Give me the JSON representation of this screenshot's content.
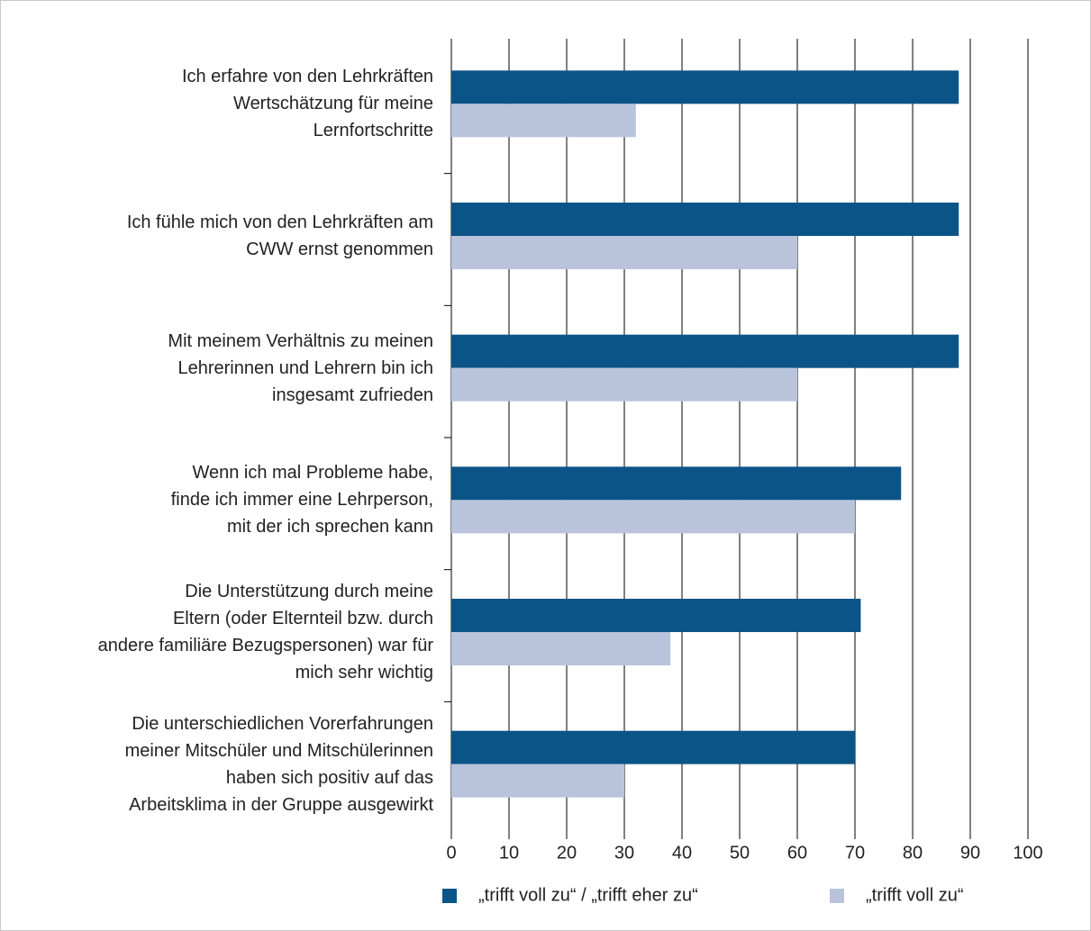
{
  "chart_data": {
    "type": "hbar",
    "categories": [
      "Ich erfahre von den Lehrkräften\nWertschätzung für meine\nLernfortschritte",
      "Ich fühle mich von den Lehrkräften am\nCWW ernst genommen",
      "Mit meinem Verhältnis zu meinen\nLehrerinnen und Lehrern bin ich\ninsgesamt zufrieden",
      "Wenn ich mal Probleme habe,\nfinde ich immer eine Lehrperson,\nmit der ich sprechen kann",
      "Die Unterstützung durch meine\nEltern (oder Elternteil bzw. durch\nandere familiäre Bezugspersonen) war für\nmich sehr wichtig",
      "Die unterschiedlichen Vorerfahrungen\nmeiner Mitschüler und Mitschülerinnen\nhaben sich positiv auf das\nArbeitsklima in der Gruppe ausgewirkt"
    ],
    "series": [
      {
        "name": "„trifft voll zu“ / „trifft eher zu“",
        "color": "#0b5487",
        "values": [
          88,
          88,
          88,
          78,
          71,
          70
        ]
      },
      {
        "name": "„trifft voll zu“",
        "color": "#b9c4dc",
        "values": [
          32,
          60,
          60,
          70,
          38,
          30
        ]
      }
    ],
    "xlim": [
      0,
      100
    ],
    "xticks": [
      0,
      10,
      20,
      30,
      40,
      50,
      60,
      70,
      80,
      90,
      100
    ],
    "grid": true,
    "legend": "bottom"
  }
}
